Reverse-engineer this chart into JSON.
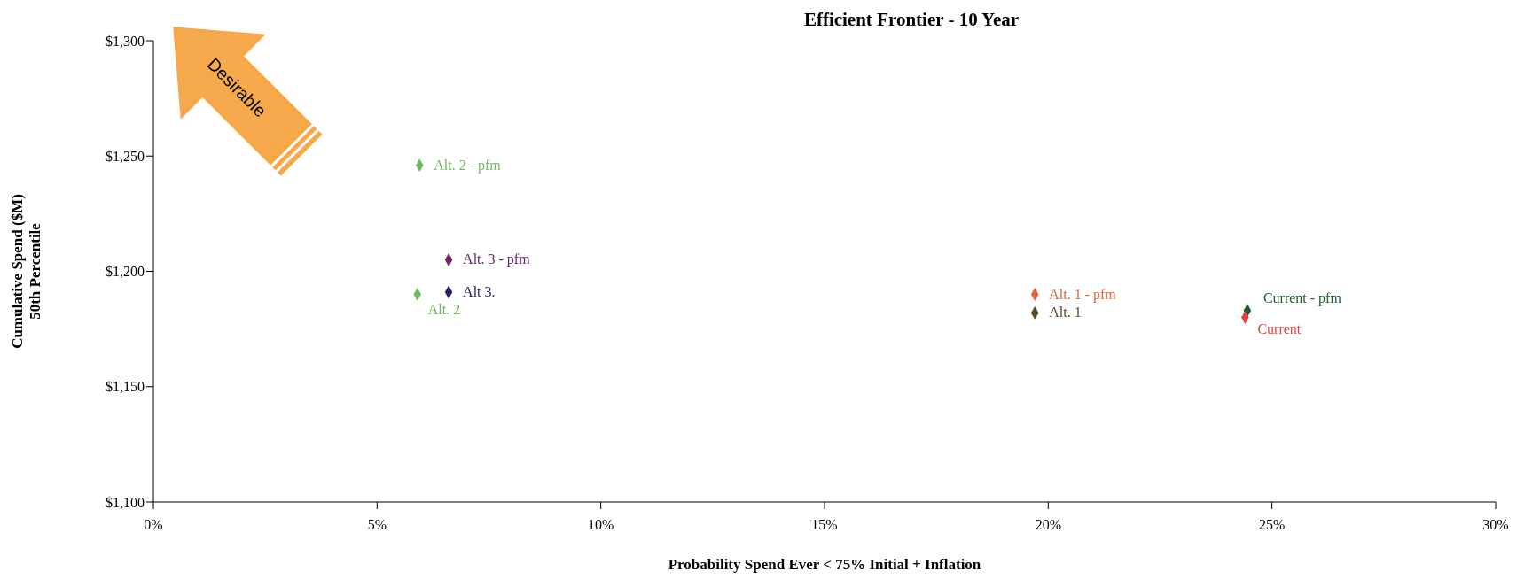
{
  "chart_data": {
    "type": "scatter",
    "title": "Efficient Frontier - 10 Year",
    "xlabel": "Probability Spend Ever < 75% Initial + Inflation",
    "ylabel": "Cumulative Spend ($M)\n50th Percentile",
    "annotations": [
      "Desirable"
    ],
    "marker": "diamond",
    "xlim": [
      0,
      30
    ],
    "xticks": [
      {
        "value": 0,
        "label": "0%"
      },
      {
        "value": 5,
        "label": "5%"
      },
      {
        "value": 10,
        "label": "10%"
      },
      {
        "value": 15,
        "label": "15%"
      },
      {
        "value": 20,
        "label": "20%"
      },
      {
        "value": 25,
        "label": "25%"
      },
      {
        "value": 30,
        "label": "30%"
      }
    ],
    "ylim": [
      1100,
      1300
    ],
    "yticks": [
      {
        "value": 1100,
        "label": "$1,100"
      },
      {
        "value": 1150,
        "label": "$1,150"
      },
      {
        "value": 1200,
        "label": "$1,200"
      },
      {
        "value": 1250,
        "label": "$1,250"
      },
      {
        "value": 1300,
        "label": "$1,300"
      }
    ],
    "series": [
      {
        "name": "Alt. 2 - pfm",
        "color": "#72b85c",
        "x": [
          5.95
        ],
        "values": [
          1246
        ]
      },
      {
        "name": "Alt. 2",
        "color": "#72b85c",
        "x": [
          5.9
        ],
        "values": [
          1190
        ]
      },
      {
        "name": "Alt. 3 - pfm",
        "color": "#6b2566",
        "x": [
          6.6
        ],
        "values": [
          1205
        ]
      },
      {
        "name": "Alt 3.",
        "color": "#2a2060",
        "x": [
          6.6
        ],
        "values": [
          1191
        ]
      },
      {
        "name": "Alt. 1 - pfm",
        "color": "#e8623a",
        "x": [
          19.7
        ],
        "values": [
          1190
        ]
      },
      {
        "name": "Alt. 1",
        "color": "#5a4a2a",
        "x": [
          19.7
        ],
        "values": [
          1182
        ]
      },
      {
        "name": "Current - pfm",
        "color": "#1e5a2e",
        "x": [
          24.45
        ],
        "values": [
          1183
        ]
      },
      {
        "name": "Current",
        "color": "#e8413a",
        "x": [
          24.4
        ],
        "values": [
          1180
        ]
      }
    ]
  }
}
